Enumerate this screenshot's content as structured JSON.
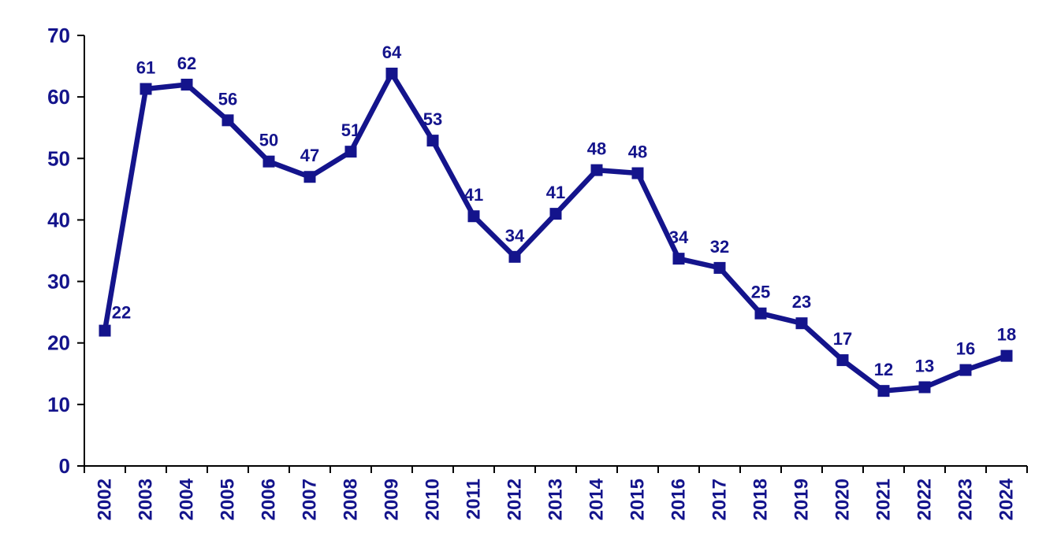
{
  "chart_data": {
    "type": "line",
    "title": "",
    "xlabel": "",
    "ylabel": "",
    "categories": [
      "2002",
      "2003",
      "2004",
      "2005",
      "2006",
      "2007",
      "2008",
      "2009",
      "2010",
      "2011",
      "2012",
      "2013",
      "2014",
      "2015",
      "2016",
      "2017",
      "2018",
      "2019",
      "2020",
      "2021",
      "2022",
      "2023",
      "2024"
    ],
    "values": [
      22.0,
      61.3,
      62.0,
      56.2,
      49.5,
      47.0,
      51.1,
      63.8,
      52.9,
      40.6,
      34.0,
      41.0,
      48.1,
      47.6,
      33.7,
      32.2,
      24.8,
      23.2,
      17.2,
      12.2,
      12.8,
      15.6,
      17.9
    ],
    "point_labels": [
      "22",
      "61",
      "62",
      "56",
      "50",
      "47",
      "51",
      "64",
      "53",
      "41",
      "34",
      "41",
      "48",
      "48",
      "34",
      "32",
      "25",
      "23",
      "17",
      "12",
      "13",
      "16",
      "18"
    ],
    "ylim": [
      0,
      70
    ],
    "yticks": [
      0,
      10,
      20,
      30,
      40,
      50,
      60,
      70
    ],
    "grid": false,
    "legend": "none",
    "marker": "square",
    "x_tick_label_rotation": -90,
    "colors": {
      "series": "#14148C",
      "data_labels": "#14148C",
      "axis_tick_labels": "#14148C",
      "axis_lines": "#000000",
      "background": "#FFFFFF"
    }
  }
}
